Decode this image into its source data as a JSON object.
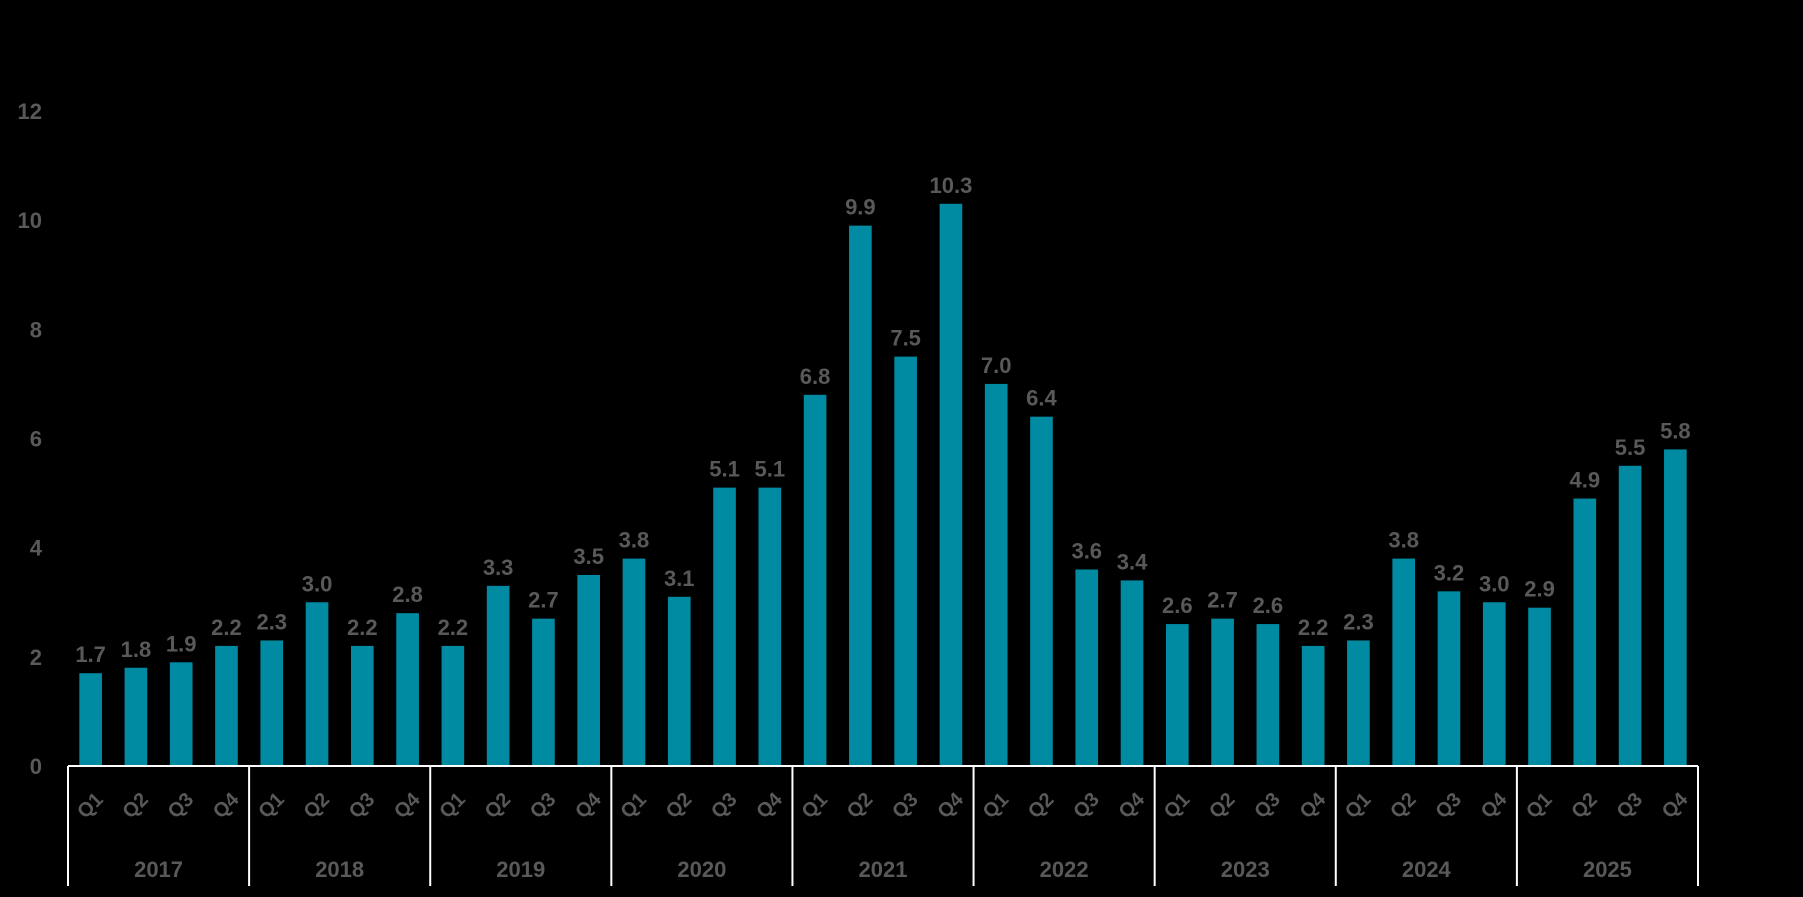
{
  "chart_data": {
    "type": "bar",
    "title": "",
    "xlabel": "",
    "ylabel": "",
    "ylim": [
      0,
      12
    ],
    "yticks": [
      0,
      2,
      4,
      6,
      8,
      10,
      12
    ],
    "grid": false,
    "legend": "none",
    "bar_color": "#008BA3",
    "axis_color": "#FFFFFF",
    "text_color": "#595959",
    "groups": [
      {
        "year": "2017",
        "quarters": [
          "Q1",
          "Q2",
          "Q3",
          "Q4"
        ],
        "values": [
          1.7,
          1.8,
          1.9,
          2.2
        ],
        "labels": [
          "1.7",
          "1.8",
          "1.9",
          "2.2"
        ]
      },
      {
        "year": "2018",
        "quarters": [
          "Q1",
          "Q2",
          "Q3",
          "Q4"
        ],
        "values": [
          2.3,
          3.0,
          2.2,
          2.8
        ],
        "labels": [
          "2.3",
          "3.0",
          "2.2",
          "2.8"
        ]
      },
      {
        "year": "2019",
        "quarters": [
          "Q1",
          "Q2",
          "Q3",
          "Q4"
        ],
        "values": [
          2.2,
          3.3,
          2.7,
          3.5
        ],
        "labels": [
          "2.2",
          "3.3",
          "2.7",
          "3.5"
        ]
      },
      {
        "year": "2020",
        "quarters": [
          "Q1",
          "Q2",
          "Q3",
          "Q4"
        ],
        "values": [
          3.8,
          3.1,
          5.1,
          5.1
        ],
        "labels": [
          "3.8",
          "3.1",
          "5.1",
          "5.1"
        ]
      },
      {
        "year": "2021",
        "quarters": [
          "Q1",
          "Q2",
          "Q3",
          "Q4"
        ],
        "values": [
          6.8,
          9.9,
          7.5,
          10.3
        ],
        "labels": [
          "6.8",
          "9.9",
          "7.5",
          "10.3"
        ]
      },
      {
        "year": "2022",
        "quarters": [
          "Q1",
          "Q2",
          "Q3",
          "Q4"
        ],
        "values": [
          7.0,
          6.4,
          3.6,
          3.4
        ],
        "labels": [
          "7.0",
          "6.4",
          "3.6",
          "3.4"
        ]
      },
      {
        "year": "2023",
        "quarters": [
          "Q1",
          "Q2",
          "Q3",
          "Q4"
        ],
        "values": [
          2.6,
          2.7,
          2.6,
          2.2
        ],
        "labels": [
          "2.6",
          "2.7",
          "2.6",
          "2.2"
        ]
      },
      {
        "year": "2024",
        "quarters": [
          "Q1",
          "Q2",
          "Q3",
          "Q4"
        ],
        "values": [
          2.3,
          3.8,
          3.2,
          3.0
        ],
        "labels": [
          "2.3",
          "3.8",
          "3.2",
          "3.0"
        ]
      },
      {
        "year": "2025",
        "quarters": [
          "Q1",
          "Q2",
          "Q3",
          "Q4"
        ],
        "values": [
          2.9,
          4.9,
          5.5,
          5.8
        ],
        "labels": [
          "2.9",
          "4.9",
          "5.5",
          "5.8"
        ]
      }
    ]
  }
}
